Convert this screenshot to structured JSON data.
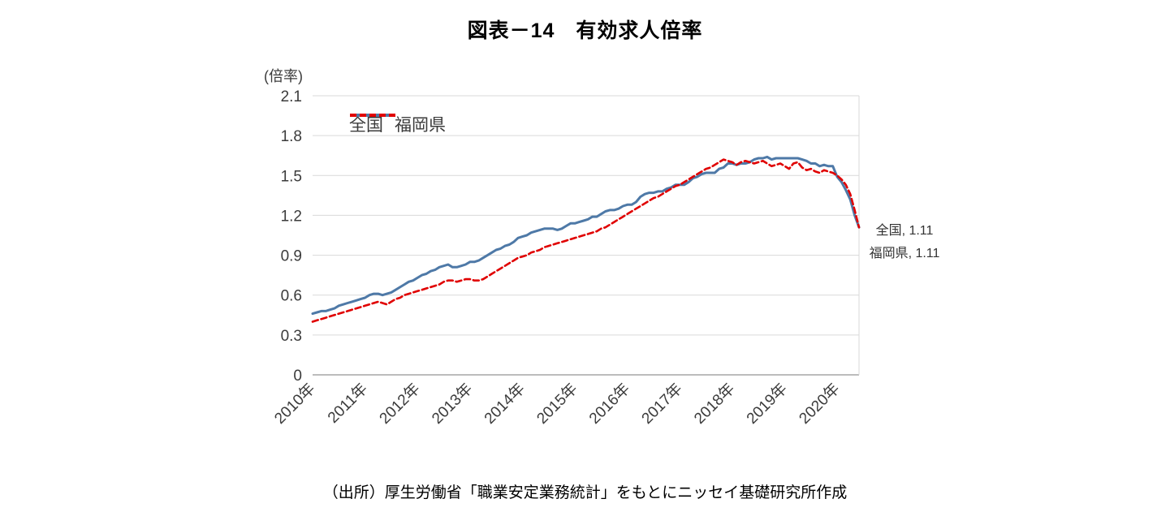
{
  "title": "図表－14　有効求人倍率",
  "axis_unit_label": "(倍率)",
  "annotations": [
    "全国, 1.11",
    "福岡県, 1.11"
  ],
  "source_note": "（出所）厚生労働省「職業安定業務統計」をもとにニッセイ基礎研究所作成",
  "colors": {
    "national_line": "#4E79A7",
    "fukuoka_line": "#E00000",
    "gridline": "#D9D9D9",
    "axis_line": "#A6A6A6",
    "tick_text": "#3B3B3B"
  },
  "chart_data": {
    "type": "line",
    "title": "図表－14　有効求人倍率",
    "ylabel": "(倍率)",
    "xlabel": "",
    "ylim": [
      0,
      2.1
    ],
    "yticks": [
      0,
      0.3,
      0.6,
      0.9,
      1.2,
      1.5,
      1.8,
      2.1
    ],
    "grid": "horizontal",
    "legend_position": "top-left-inside",
    "x_frequency": "monthly",
    "x_range": [
      "2010-01",
      "2020-06"
    ],
    "xtick_labels": [
      "2010年",
      "2011年",
      "2012年",
      "2013年",
      "2014年",
      "2015年",
      "2016年",
      "2017年",
      "2018年",
      "2019年",
      "2020年"
    ],
    "xtick_interval_months": 12,
    "end_values": {
      "全国": 1.11,
      "福岡県": 1.11
    },
    "series": [
      {
        "name": "全国",
        "color": "#4E79A7",
        "style": "solid",
        "values": [
          0.46,
          0.47,
          0.48,
          0.48,
          0.49,
          0.5,
          0.52,
          0.53,
          0.54,
          0.55,
          0.56,
          0.57,
          0.58,
          0.6,
          0.61,
          0.61,
          0.6,
          0.61,
          0.62,
          0.64,
          0.66,
          0.68,
          0.7,
          0.71,
          0.73,
          0.75,
          0.76,
          0.78,
          0.79,
          0.81,
          0.82,
          0.83,
          0.81,
          0.81,
          0.82,
          0.83,
          0.85,
          0.85,
          0.86,
          0.88,
          0.9,
          0.92,
          0.94,
          0.95,
          0.97,
          0.98,
          1.0,
          1.03,
          1.04,
          1.05,
          1.07,
          1.08,
          1.09,
          1.1,
          1.1,
          1.1,
          1.09,
          1.1,
          1.12,
          1.14,
          1.14,
          1.15,
          1.16,
          1.17,
          1.19,
          1.19,
          1.21,
          1.23,
          1.24,
          1.24,
          1.25,
          1.27,
          1.28,
          1.28,
          1.3,
          1.34,
          1.36,
          1.37,
          1.37,
          1.38,
          1.38,
          1.4,
          1.41,
          1.43,
          1.43,
          1.43,
          1.45,
          1.48,
          1.49,
          1.51,
          1.52,
          1.52,
          1.52,
          1.55,
          1.56,
          1.59,
          1.59,
          1.58,
          1.59,
          1.59,
          1.6,
          1.62,
          1.63,
          1.63,
          1.64,
          1.62,
          1.63,
          1.63,
          1.63,
          1.63,
          1.63,
          1.63,
          1.62,
          1.61,
          1.59,
          1.59,
          1.57,
          1.58,
          1.57,
          1.57,
          1.49,
          1.45,
          1.39,
          1.32,
          1.2,
          1.11
        ]
      },
      {
        "name": "福岡県",
        "color": "#E00000",
        "style": "dashed",
        "values": [
          0.4,
          0.41,
          0.42,
          0.43,
          0.44,
          0.45,
          0.46,
          0.47,
          0.48,
          0.49,
          0.5,
          0.51,
          0.52,
          0.53,
          0.54,
          0.55,
          0.54,
          0.53,
          0.55,
          0.57,
          0.58,
          0.6,
          0.61,
          0.62,
          0.63,
          0.64,
          0.65,
          0.66,
          0.67,
          0.68,
          0.7,
          0.71,
          0.71,
          0.7,
          0.71,
          0.72,
          0.72,
          0.71,
          0.71,
          0.72,
          0.74,
          0.76,
          0.78,
          0.8,
          0.82,
          0.84,
          0.86,
          0.88,
          0.89,
          0.9,
          0.92,
          0.93,
          0.94,
          0.96,
          0.97,
          0.98,
          0.99,
          1.0,
          1.01,
          1.02,
          1.03,
          1.04,
          1.05,
          1.06,
          1.07,
          1.08,
          1.1,
          1.11,
          1.13,
          1.15,
          1.17,
          1.19,
          1.21,
          1.23,
          1.25,
          1.27,
          1.29,
          1.31,
          1.33,
          1.34,
          1.36,
          1.38,
          1.4,
          1.42,
          1.43,
          1.45,
          1.47,
          1.49,
          1.51,
          1.53,
          1.55,
          1.56,
          1.58,
          1.6,
          1.62,
          1.61,
          1.6,
          1.58,
          1.6,
          1.61,
          1.6,
          1.59,
          1.6,
          1.61,
          1.59,
          1.57,
          1.58,
          1.59,
          1.57,
          1.55,
          1.59,
          1.6,
          1.56,
          1.54,
          1.55,
          1.53,
          1.52,
          1.54,
          1.53,
          1.52,
          1.5,
          1.47,
          1.43,
          1.36,
          1.24,
          1.11
        ]
      }
    ]
  }
}
